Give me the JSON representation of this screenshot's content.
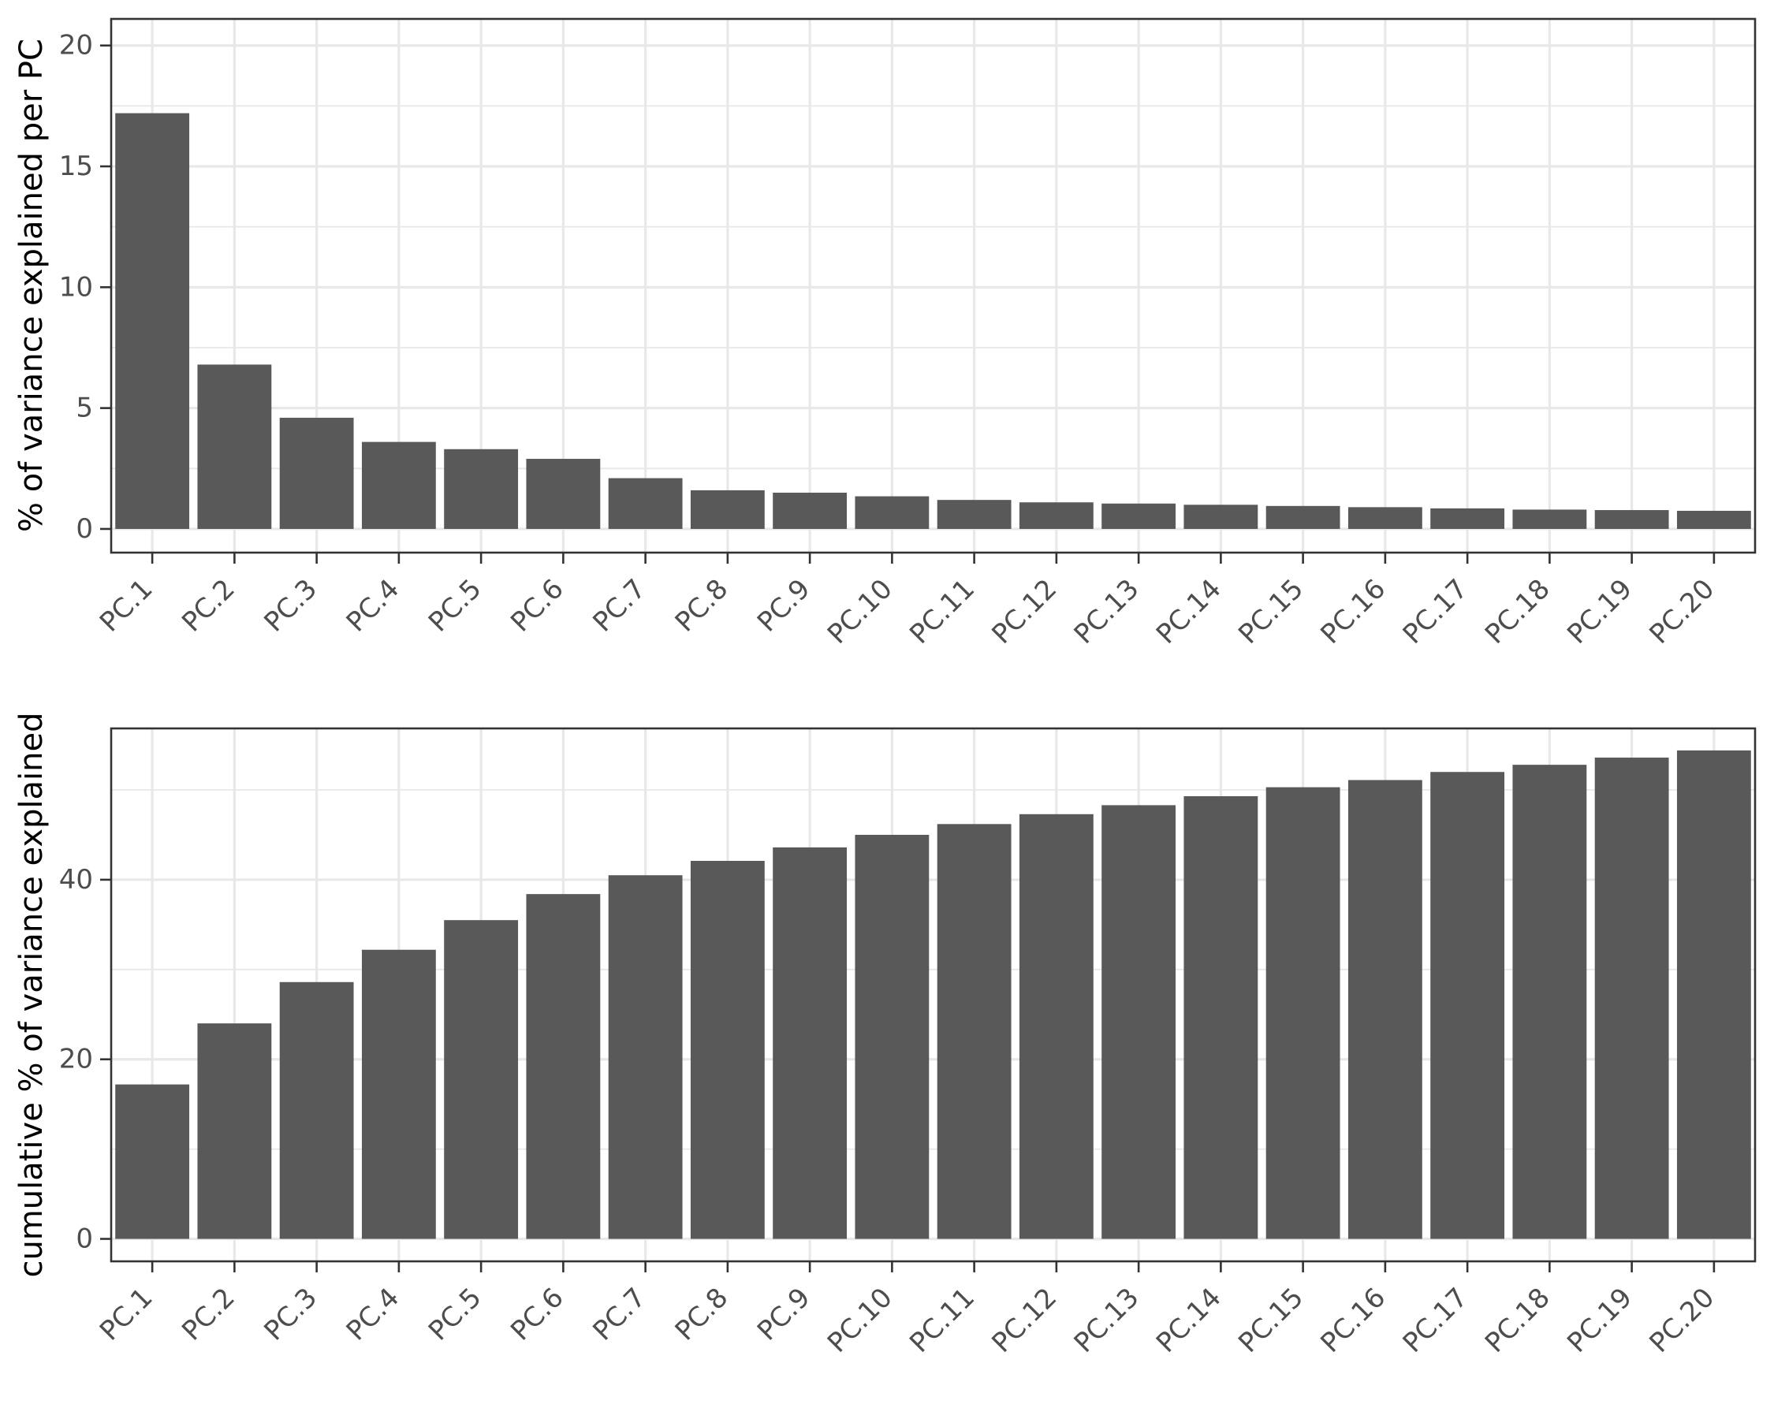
{
  "figure": {
    "background": "#ffffff"
  },
  "style": {
    "bar_fill": "#595959",
    "grid_color": "#e8e8e8",
    "border_color": "#333333",
    "tick_color": "#333333",
    "tick_label_color": "#4d4d4d",
    "axis_title_color": "#000000"
  },
  "chart_data": [
    {
      "type": "bar",
      "name": "scree-chart",
      "title": "",
      "xlabel": "",
      "ylabel": "% of variance explained per PC",
      "legend": "none",
      "grid": "major+minor",
      "categories": [
        "PC.1",
        "PC.2",
        "PC.3",
        "PC.4",
        "PC.5",
        "PC.6",
        "PC.7",
        "PC.8",
        "PC.9",
        "PC.10",
        "PC.11",
        "PC.12",
        "PC.13",
        "PC.14",
        "PC.15",
        "PC.16",
        "PC.17",
        "PC.18",
        "PC.19",
        "PC.20"
      ],
      "values": [
        17.2,
        6.8,
        4.6,
        3.6,
        3.3,
        2.9,
        2.1,
        1.6,
        1.5,
        1.35,
        1.2,
        1.1,
        1.05,
        1.0,
        0.95,
        0.9,
        0.85,
        0.8,
        0.78,
        0.75
      ],
      "yticks": [
        0,
        5,
        10,
        15,
        20
      ],
      "y_minor_ticks": [
        2.5,
        7.5,
        12.5,
        17.5
      ],
      "ylim": [
        -0.98,
        21.1
      ]
    },
    {
      "type": "bar",
      "name": "cumulative-chart",
      "title": "",
      "xlabel": "",
      "ylabel": "cumulative % of variance explained",
      "legend": "none",
      "grid": "major+minor",
      "categories": [
        "PC.1",
        "PC.2",
        "PC.3",
        "PC.4",
        "PC.5",
        "PC.6",
        "PC.7",
        "PC.8",
        "PC.9",
        "PC.10",
        "PC.11",
        "PC.12",
        "PC.13",
        "PC.14",
        "PC.15",
        "PC.16",
        "PC.17",
        "PC.18",
        "PC.19",
        "PC.20"
      ],
      "values": [
        17.2,
        24.0,
        28.6,
        32.2,
        35.5,
        38.4,
        40.5,
        42.1,
        43.6,
        45.0,
        46.2,
        47.3,
        48.3,
        49.3,
        50.3,
        51.1,
        52.0,
        52.8,
        53.6,
        54.4
      ],
      "yticks": [
        0,
        20,
        40
      ],
      "y_minor_ticks": [
        10,
        30,
        50
      ],
      "ylim": [
        -2.5,
        56.85
      ]
    }
  ]
}
